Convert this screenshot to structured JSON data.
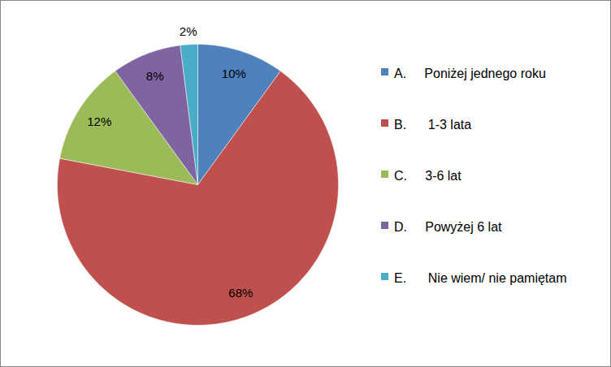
{
  "chart_data": {
    "type": "pie",
    "categories": [
      "A.     Poniżej jednego roku",
      "B.      1-3 lata",
      "C.     3-6 lat",
      "D.     Powyżej 6 lat",
      "E.      Nie wiem/ nie pamiętam"
    ],
    "values": [
      10,
      68,
      12,
      8,
      2
    ],
    "value_labels": [
      "10%",
      "68%",
      "12%",
      "8%",
      "2%"
    ],
    "colors": [
      "#4f81bd",
      "#c0504d",
      "#9bbb59",
      "#8064a2",
      "#4bacc6"
    ],
    "data_labels": true,
    "legend": "right"
  }
}
